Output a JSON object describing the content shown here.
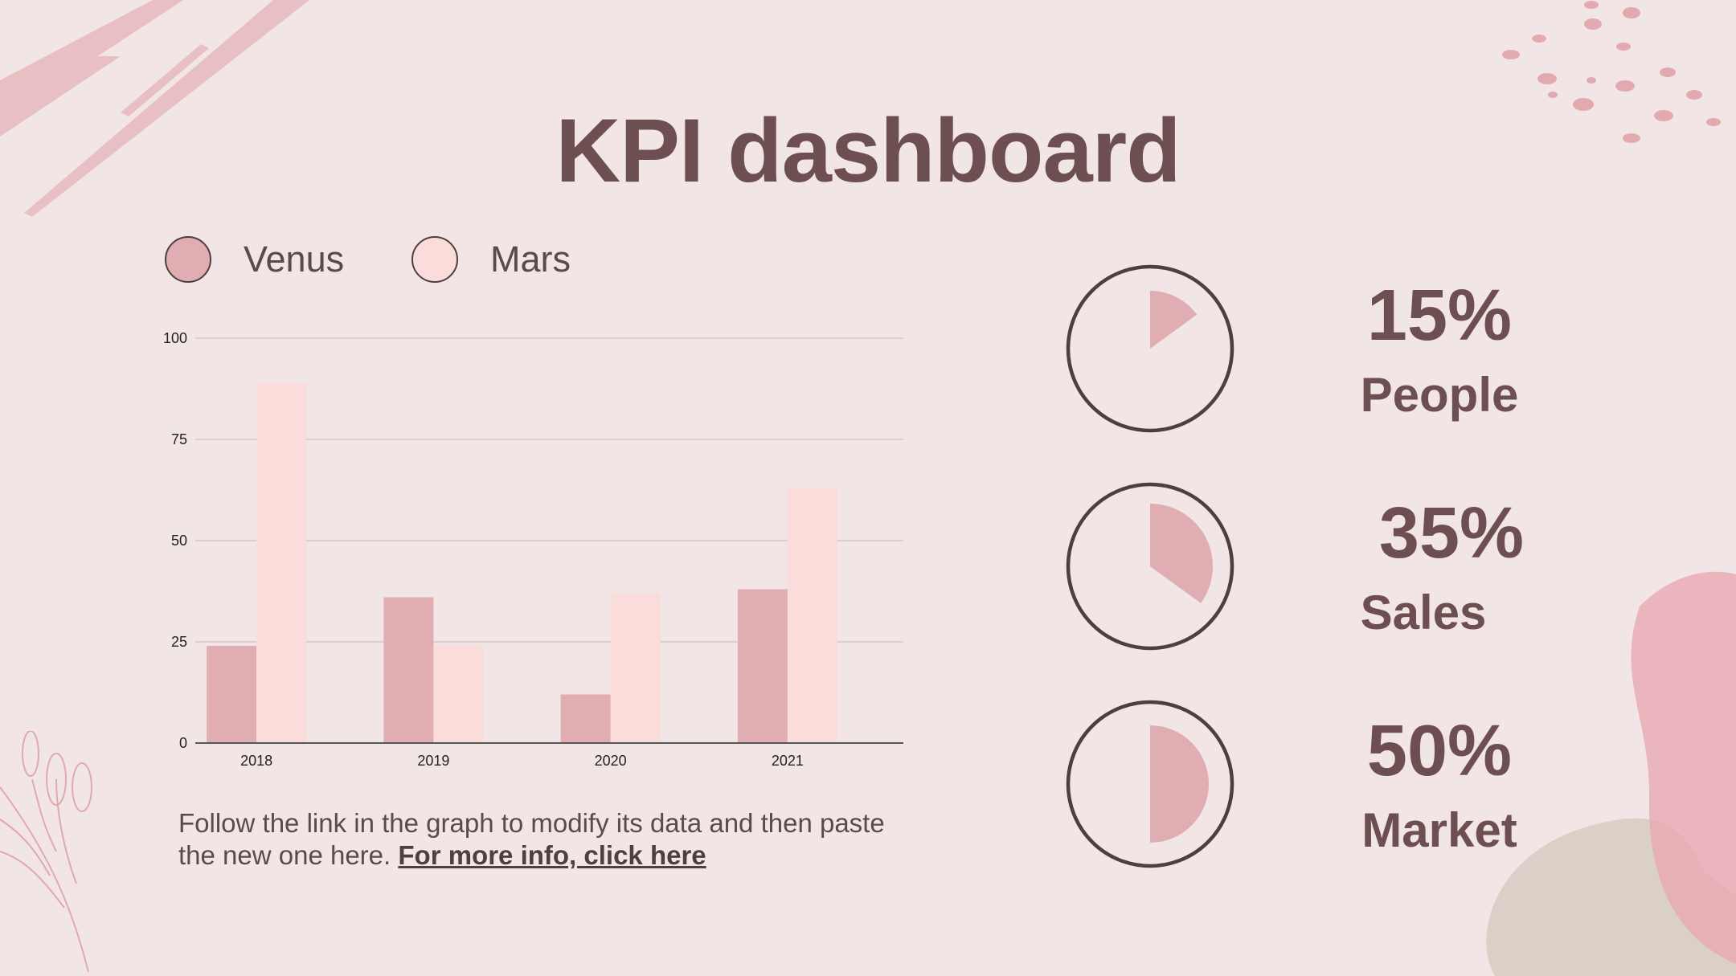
{
  "title": "KPI dashboard",
  "colors": {
    "venus": "#e0adb2",
    "mars": "#fadcda",
    "text": "#6e4f51",
    "ring": "#4e3f3f"
  },
  "legend": [
    {
      "label": "Venus",
      "color": "#e0adb2"
    },
    {
      "label": "Mars",
      "color": "#fadcda"
    }
  ],
  "chart_data": {
    "type": "bar",
    "categories": [
      "2018",
      "2019",
      "2020",
      "2021"
    ],
    "series": [
      {
        "name": "Venus",
        "values": [
          24,
          36,
          12,
          38
        ],
        "color": "#e0adb2"
      },
      {
        "name": "Mars",
        "values": [
          89,
          24,
          37,
          63
        ],
        "color": "#fadcda"
      }
    ],
    "ylim": [
      0,
      100
    ],
    "yticks": [
      "0",
      "25",
      "50",
      "75",
      "100"
    ],
    "grid": true,
    "legend_position": "top-left"
  },
  "caption": {
    "text": "Follow the link in the graph to modify its data and then paste the new one here.",
    "link_text": "For more info, click here"
  },
  "kpis": [
    {
      "value_text": "15%",
      "label": "People",
      "fraction": 0.15
    },
    {
      "value_text": "35%",
      "label": "Sales",
      "fraction": 0.35
    },
    {
      "value_text": "50%",
      "label": "Market",
      "fraction": 0.5
    }
  ]
}
